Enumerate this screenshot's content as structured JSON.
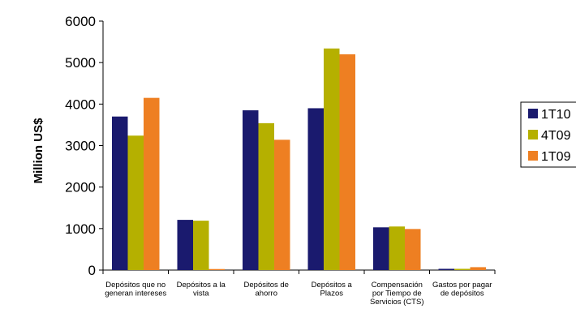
{
  "chart_data": {
    "type": "bar",
    "title": "",
    "xlabel": "",
    "ylabel": "Million US$",
    "ylim": [
      0,
      6000
    ],
    "yticks": [
      "0",
      "1000",
      "2000",
      "3000",
      "4000",
      "5000",
      "6000"
    ],
    "categories": [
      [
        "Depósitos que no",
        "generan intereses"
      ],
      [
        "Depósitos a la",
        "vista"
      ],
      [
        "Depósitos de",
        "ahorro"
      ],
      [
        "Depósitos a",
        "Plazos"
      ],
      [
        "Compensación",
        "por Tiempo de",
        "Servicios (CTS)"
      ],
      [
        "Gastos por pagar",
        "de depósitos"
      ]
    ],
    "series": [
      {
        "name": "1T10",
        "color": "#1a1a6e",
        "values": [
          3700,
          1210,
          3850,
          3900,
          1030,
          30
        ]
      },
      {
        "name": "4T09",
        "color": "#b5b000",
        "values": [
          3240,
          1190,
          3540,
          5340,
          1050,
          30
        ]
      },
      {
        "name": "1T09",
        "color": "#ee7f22",
        "values": [
          4150,
          25,
          3140,
          5200,
          990,
          70
        ]
      }
    ],
    "grid": false,
    "legend_position": "right"
  }
}
